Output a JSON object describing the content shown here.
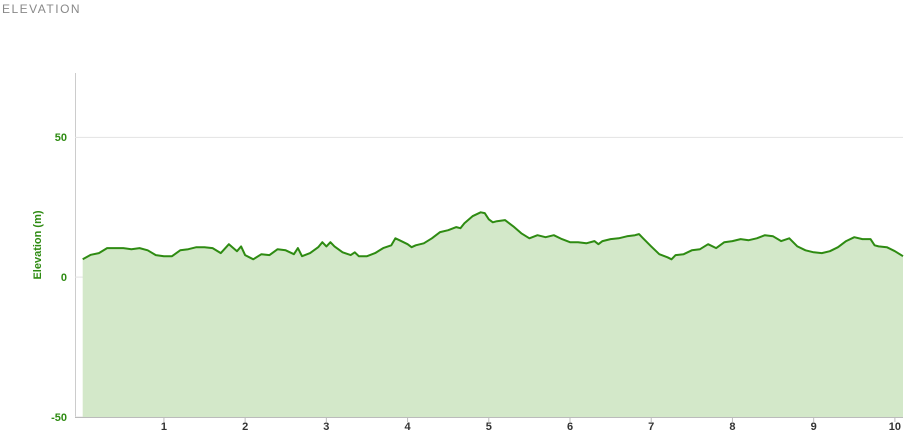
{
  "chart_data": {
    "type": "area",
    "title": "ELEVATION",
    "y_label": "Elevation (m)",
    "x": [
      0,
      0.1,
      0.2,
      0.3,
      0.4,
      0.5,
      0.6,
      0.7,
      0.8,
      0.9,
      1.0,
      1.1,
      1.2,
      1.3,
      1.4,
      1.5,
      1.6,
      1.7,
      1.8,
      1.9,
      1.95,
      2.0,
      2.1,
      2.2,
      2.3,
      2.4,
      2.5,
      2.6,
      2.65,
      2.7,
      2.8,
      2.9,
      2.95,
      3.0,
      3.05,
      3.1,
      3.2,
      3.3,
      3.35,
      3.4,
      3.5,
      3.6,
      3.7,
      3.8,
      3.85,
      3.9,
      4.0,
      4.05,
      4.1,
      4.2,
      4.3,
      4.4,
      4.5,
      4.6,
      4.65,
      4.7,
      4.8,
      4.9,
      4.95,
      5.0,
      5.05,
      5.1,
      5.2,
      5.3,
      5.4,
      5.5,
      5.6,
      5.7,
      5.8,
      5.9,
      6.0,
      6.1,
      6.2,
      6.3,
      6.35,
      6.4,
      6.5,
      6.6,
      6.7,
      6.8,
      6.85,
      6.9,
      7.0,
      7.1,
      7.2,
      7.25,
      7.3,
      7.4,
      7.5,
      7.6,
      7.7,
      7.8,
      7.9,
      8.0,
      8.1,
      8.2,
      8.3,
      8.4,
      8.5,
      8.6,
      8.7,
      8.8,
      8.9,
      9.0,
      9.1,
      9.2,
      9.3,
      9.4,
      9.5,
      9.6,
      9.7,
      9.75,
      9.8,
      9.9,
      10.0,
      10.1
    ],
    "values": [
      6.4,
      8,
      8.6,
      10.4,
      10.4,
      10.4,
      10,
      10.4,
      9.6,
      7.9,
      7.5,
      7.5,
      9.6,
      10,
      10.7,
      10.7,
      10.4,
      8.6,
      11.8,
      9.3,
      11,
      7.9,
      6.4,
      8.2,
      7.9,
      10,
      9.6,
      8.2,
      10.4,
      7.5,
      8.6,
      10.7,
      12.5,
      11,
      12.5,
      11,
      8.9,
      7.9,
      8.9,
      7.5,
      7.5,
      8.6,
      10.4,
      11.4,
      13.9,
      13.2,
      11.8,
      10.7,
      11.4,
      12.1,
      13.9,
      16.1,
      16.8,
      17.9,
      17.5,
      19.3,
      21.8,
      23.2,
      22.9,
      20.7,
      19.6,
      20,
      20.4,
      18.2,
      15.7,
      13.9,
      15,
      14.3,
      15,
      13.6,
      12.5,
      12.5,
      12.1,
      12.9,
      11.8,
      12.9,
      13.6,
      13.9,
      14.6,
      15,
      15.4,
      13.9,
      11,
      8.2,
      7.1,
      6.4,
      7.9,
      8.2,
      9.6,
      10,
      11.8,
      10.4,
      12.5,
      12.9,
      13.6,
      13.2,
      13.9,
      15,
      14.6,
      12.9,
      13.9,
      11,
      9.6,
      8.9,
      8.6,
      9.3,
      10.7,
      12.9,
      14.3,
      13.6,
      13.6,
      11.4,
      11,
      10.7,
      9.3,
      7.5
    ],
    "xlim": [
      0,
      10.1
    ],
    "ylim": [
      -50,
      73
    ],
    "xticks": [
      1,
      2,
      3,
      4,
      5,
      6,
      7,
      8,
      9,
      10
    ],
    "yticks": [
      -50,
      0,
      50
    ],
    "color": "#2e8b12",
    "fill_color": "#d3e8c9",
    "grid": true
  }
}
